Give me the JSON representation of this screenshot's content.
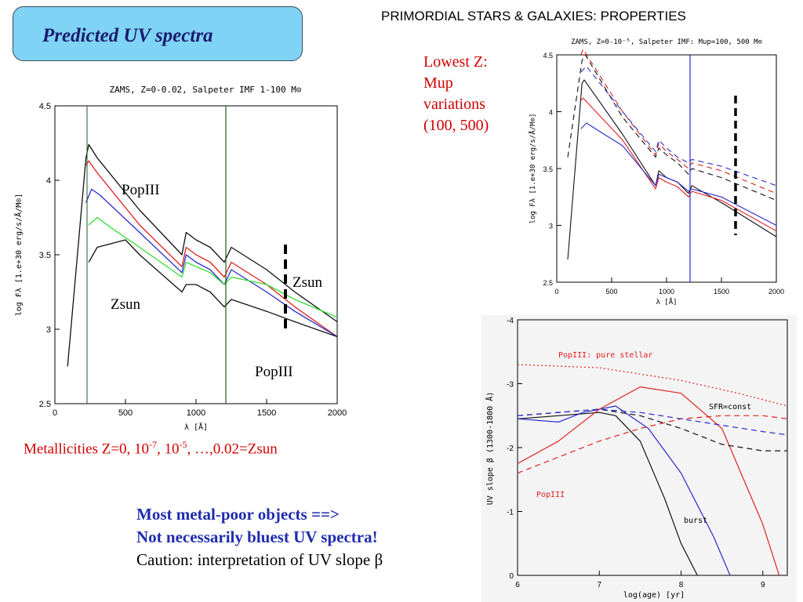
{
  "slide": {
    "title": "Predicted UV spectra",
    "header": "PRIMORDIAL STARS & GALAXIES: PROPERTIES",
    "lowest_lines": [
      "Lowest Z:",
      "Mup",
      "variations",
      "(100, 500)"
    ],
    "metallicities": {
      "prefix": "Metallicities Z=0, 10",
      "exp1": "-7",
      "mid": ", 10",
      "exp2": "-5",
      "suffix": ", …,0.02=Zsun"
    },
    "conclusion": {
      "line1": "Most metal-poor objects ==>",
      "line2": "Not necessarily bluest UV spectra!",
      "line3": "Caution: interpretation of UV slope β"
    }
  },
  "colors": {
    "title_box": "#7fd3f5",
    "title_text": "#1b1b6e",
    "red_text": "#d00000",
    "blue_text": "#1f2dae",
    "series_black": "#111111",
    "series_red": "#e02020",
    "series_blue": "#2a2acd",
    "series_green": "#33dd33",
    "zsun_marker": "#000000"
  },
  "chart_data": [
    {
      "type": "line",
      "title": "ZAMS, Z=0-0.02, Salpeter IMF 1-100 M⊙",
      "xlabel": "λ [Å]",
      "ylabel": "log Fλ [1.e+30 erg/s/Å/M⊙]",
      "xlim": [
        0,
        2000
      ],
      "ylim": [
        2.5,
        4.5
      ],
      "xticks": [
        "0",
        "500",
        "1000",
        "1500",
        "2000"
      ],
      "yticks": [
        "2.5",
        "3",
        "3.5",
        "4",
        "4.5"
      ],
      "annotations": [
        "PopIII",
        "Zsun",
        "Zsun",
        "PopIII"
      ],
      "series": [
        {
          "color": "black",
          "x": [
            90,
            220,
            240,
            300,
            600,
            900,
            930,
            1000,
            1100,
            1200,
            1250,
            1500,
            1700,
            2000
          ],
          "y": [
            2.75,
            4.15,
            4.24,
            4.15,
            3.8,
            3.5,
            3.65,
            3.6,
            3.55,
            3.45,
            3.55,
            3.4,
            3.25,
            3.05
          ]
        },
        {
          "color": "red",
          "x": [
            220,
            240,
            300,
            600,
            900,
            930,
            1000,
            1100,
            1200,
            1250,
            1500,
            1700,
            2000
          ],
          "y": [
            4.1,
            4.13,
            4.05,
            3.7,
            3.42,
            3.55,
            3.5,
            3.45,
            3.35,
            3.45,
            3.3,
            3.15,
            2.95
          ]
        },
        {
          "color": "blue",
          "x": [
            220,
            260,
            320,
            600,
            900,
            930,
            1000,
            1100,
            1200,
            1250,
            1500,
            1700,
            2000
          ],
          "y": [
            3.85,
            3.94,
            3.9,
            3.65,
            3.38,
            3.5,
            3.45,
            3.4,
            3.3,
            3.4,
            3.25,
            3.12,
            2.95
          ]
        },
        {
          "color": "green",
          "x": [
            240,
            300,
            400,
            600,
            900,
            930,
            1000,
            1100,
            1200,
            1250,
            1500,
            1700,
            2000
          ],
          "y": [
            3.7,
            3.75,
            3.68,
            3.55,
            3.35,
            3.45,
            3.42,
            3.38,
            3.3,
            3.35,
            3.3,
            3.2,
            3.08
          ]
        },
        {
          "color": "black",
          "x": [
            240,
            300,
            500,
            600,
            900,
            930,
            1000,
            1100,
            1200,
            1250,
            1500,
            1700,
            2000
          ],
          "y": [
            3.45,
            3.55,
            3.6,
            3.5,
            3.25,
            3.3,
            3.3,
            3.25,
            3.15,
            3.2,
            3.12,
            3.05,
            2.95
          ]
        }
      ]
    },
    {
      "type": "line",
      "title": "ZAMS, Z=0-10⁻⁵, Salpeter IMF: Mup=100, 500 M⊙",
      "xlabel": "λ [Å]",
      "ylabel": "log Fλ [1.e+30 erg/s/Å/M⊙]",
      "xlim": [
        0,
        2000
      ],
      "ylim": [
        2.5,
        4.5
      ],
      "xticks": [
        "0",
        "500",
        "1000",
        "1500",
        "2000"
      ],
      "yticks": [
        "2.5",
        "3",
        "3.5",
        "4",
        "4.5"
      ],
      "series": [
        {
          "color": "black",
          "style": "solid",
          "x": [
            100,
            230,
            250,
            600,
            900,
            930,
            1000,
            1100,
            1200,
            1230,
            1500,
            2000
          ],
          "y": [
            2.7,
            4.25,
            4.28,
            3.8,
            3.35,
            3.48,
            3.42,
            3.38,
            3.28,
            3.35,
            3.2,
            2.9
          ]
        },
        {
          "color": "red",
          "style": "solid",
          "x": [
            220,
            240,
            600,
            900,
            930,
            1000,
            1100,
            1200,
            1230,
            1500,
            2000
          ],
          "y": [
            4.1,
            4.12,
            3.75,
            3.32,
            3.42,
            3.38,
            3.34,
            3.25,
            3.3,
            3.22,
            2.95
          ]
        },
        {
          "color": "blue",
          "style": "solid",
          "x": [
            220,
            270,
            600,
            900,
            930,
            1000,
            1100,
            1200,
            1230,
            1500,
            2000
          ],
          "y": [
            3.85,
            3.9,
            3.7,
            3.35,
            3.45,
            3.42,
            3.38,
            3.3,
            3.32,
            3.25,
            3.0
          ]
        },
        {
          "color": "black",
          "style": "dashed",
          "x": [
            100,
            230,
            260,
            600,
            900,
            930,
            1000,
            1100,
            1200,
            1230,
            1500,
            2000
          ],
          "y": [
            3.6,
            4.45,
            4.5,
            3.95,
            3.6,
            3.68,
            3.62,
            3.55,
            3.45,
            3.5,
            3.42,
            3.22
          ]
        },
        {
          "color": "red",
          "style": "dashed",
          "x": [
            220,
            240,
            600,
            900,
            930,
            1000,
            1100,
            1200,
            1230,
            1500,
            2000
          ],
          "y": [
            4.5,
            4.55,
            4.0,
            3.62,
            3.72,
            3.65,
            3.58,
            3.5,
            3.55,
            3.48,
            3.28
          ]
        },
        {
          "color": "blue",
          "style": "dashed",
          "x": [
            220,
            270,
            600,
            900,
            930,
            1000,
            1100,
            1200,
            1230,
            1500,
            2000
          ],
          "y": [
            4.35,
            4.4,
            4.0,
            3.65,
            3.75,
            3.68,
            3.6,
            3.55,
            3.58,
            3.52,
            3.35
          ]
        }
      ]
    },
    {
      "type": "line",
      "title": "",
      "xlabel": "log(age) [yr]",
      "ylabel": "UV slope β (1300-1800 Å)",
      "xlim": [
        6,
        9.3
      ],
      "ylim": [
        0,
        -4
      ],
      "xticks": [
        "6",
        "7",
        "8",
        "9"
      ],
      "yticks": [
        "-4",
        "-3",
        "-2",
        "-1",
        "0"
      ],
      "annotations": [
        "PopIII: pure stellar",
        "SFR=const",
        "PopIII",
        "burst"
      ],
      "series": [
        {
          "color": "red",
          "style": "dotted",
          "x": [
            6.0,
            7.0,
            8.0,
            8.7,
            9.3
          ],
          "y": [
            -3.3,
            -3.25,
            -3.05,
            -2.85,
            -2.65
          ]
        },
        {
          "color": "black",
          "style": "solid",
          "x": [
            6.0,
            6.5,
            7.0,
            7.2,
            7.5,
            7.8,
            8.0,
            8.2
          ],
          "y": [
            -2.45,
            -2.5,
            -2.55,
            -2.5,
            -2.1,
            -1.2,
            -0.5,
            0.0
          ]
        },
        {
          "color": "blue",
          "style": "solid",
          "x": [
            6.0,
            6.5,
            6.8,
            7.2,
            7.6,
            8.0,
            8.4,
            8.6
          ],
          "y": [
            -2.45,
            -2.4,
            -2.55,
            -2.65,
            -2.3,
            -1.6,
            -0.6,
            0.0
          ]
        },
        {
          "color": "red",
          "style": "solid",
          "x": [
            6.0,
            6.5,
            7.0,
            7.5,
            8.0,
            8.5,
            9.0,
            9.2
          ],
          "y": [
            -1.75,
            -2.1,
            -2.6,
            -2.95,
            -2.85,
            -2.3,
            -0.8,
            0.0
          ]
        },
        {
          "color": "red",
          "style": "dashed",
          "x": [
            6.0,
            6.5,
            7.0,
            7.5,
            8.0,
            8.5,
            9.0,
            9.3
          ],
          "y": [
            -1.6,
            -1.85,
            -2.1,
            -2.3,
            -2.45,
            -2.5,
            -2.5,
            -2.45
          ]
        },
        {
          "color": "black",
          "style": "dashed",
          "x": [
            6.0,
            7.0,
            7.5,
            8.0,
            8.5,
            9.0,
            9.3
          ],
          "y": [
            -2.5,
            -2.6,
            -2.5,
            -2.3,
            -2.05,
            -1.95,
            -1.95
          ]
        },
        {
          "color": "blue",
          "style": "dashed",
          "x": [
            6.0,
            7.0,
            7.5,
            8.0,
            8.5,
            9.0,
            9.3
          ],
          "y": [
            -2.5,
            -2.6,
            -2.55,
            -2.45,
            -2.35,
            -2.25,
            -2.2
          ]
        }
      ]
    }
  ]
}
